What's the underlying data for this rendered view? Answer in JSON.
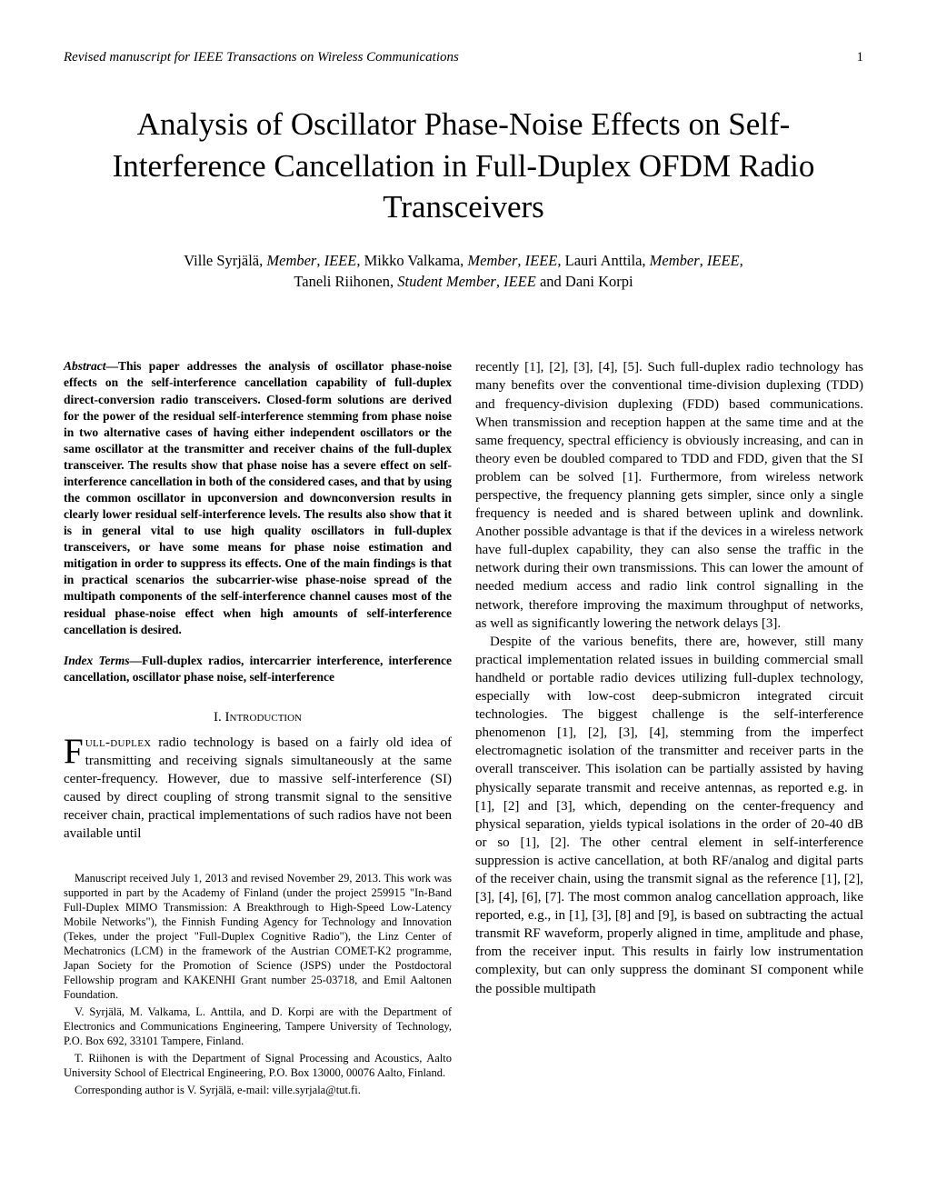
{
  "header": {
    "journal": "Revised manuscript for IEEE Transactions on Wireless Communications",
    "page": "1"
  },
  "title": "Analysis of Oscillator Phase-Noise Effects on Self-Interference Cancellation in Full-Duplex OFDM Radio Transceivers",
  "authors_line1_a": "Ville Syrjälä, ",
  "authors_role1": "Member",
  "authors_sep1": ", ",
  "authors_org1": "IEEE",
  "authors_line1_b": ", Mikko Valkama, ",
  "authors_role2": "Member",
  "authors_sep2": ", ",
  "authors_org2": "IEEE",
  "authors_line1_c": ", Lauri Anttila, ",
  "authors_role3": "Member",
  "authors_sep3": ", ",
  "authors_org3": "IEEE",
  "authors_line1_d": ",",
  "authors_line2_a": "Taneli Riihonen, ",
  "authors_role4": "Student Member",
  "authors_sep4": ", ",
  "authors_org4": "IEEE",
  "authors_line2_b": " and Dani Korpi",
  "abstract_label": "Abstract",
  "abstract_dash": "—",
  "abstract_body": "This paper addresses the analysis of oscillator phase-noise effects on the self-interference cancellation capability of full-duplex direct-conversion radio transceivers. Closed-form solutions are derived for the power of the residual self-interference stemming from phase noise in two alternative cases of having either independent oscillators or the same oscillator at the transmitter and receiver chains of the full-duplex transceiver. The results show that phase noise has a severe effect on self-interference cancellation in both of the considered cases, and that by using the common oscillator in upconversion and downconversion results in clearly lower residual self-interference levels. The results also show that it is in general vital to use high quality oscillators in full-duplex transceivers, or have some means for phase noise estimation and mitigation in order to suppress its effects. One of the main findings is that in practical scenarios the subcarrier-wise phase-noise spread of the multipath components of the self-interference channel causes most of the residual phase-noise effect when high amounts of self-interference cancellation is desired.",
  "index_label": "Index Terms",
  "index_dash": "—",
  "index_body": "Full-duplex radios, intercarrier interference, interference cancellation, oscillator phase noise, self-interference",
  "section1": "I.   Introduction",
  "intro_dc": "F",
  "intro_dc_rest": "ull-duplex",
  "intro_body": " radio technology is based on a fairly old idea of transmitting and receiving signals simultaneously at the same center-frequency. However, due to massive self-interference (SI) caused by direct coupling of strong transmit signal to the sensitive receiver chain, practical implementations of such radios have not been available until",
  "fn1": "Manuscript received July 1, 2013 and revised November 29, 2013. This work was supported in part by the Academy of Finland (under the project 259915 \"In-Band Full-Duplex MIMO Transmission: A Breakthrough to High-Speed Low-Latency Mobile Networks\"), the Finnish Funding Agency for Technology and Innovation (Tekes, under the project \"Full-Duplex Cognitive Radio\"), the Linz Center of Mechatronics (LCM) in the framework of the Austrian COMET-K2 programme, Japan Society for the Promotion of Science (JSPS) under the Postdoctoral Fellowship program and KAKENHI Grant number 25-03718, and Emil Aaltonen Foundation.",
  "fn2": "V. Syrjälä, M. Valkama, L. Anttila, and D. Korpi are with the Department of Electronics and Communications Engineering, Tampere University of Technology, P.O. Box 692, 33101 Tampere, Finland.",
  "fn3": "T. Riihonen is with the Department of Signal Processing and Acoustics, Aalto University School of Electrical Engineering, P.O. Box 13000, 00076 Aalto, Finland.",
  "fn4": "Corresponding author is V. Syrjälä, e-mail: ville.syrjala@tut.fi.",
  "right_p1": "recently [1], [2], [3], [4], [5]. Such full-duplex radio technology has many benefits over the conventional time-division duplexing (TDD) and frequency-division duplexing (FDD) based communications. When transmission and reception happen at the same time and at the same frequency, spectral efficiency is obviously increasing, and can in theory even be doubled compared to TDD and FDD, given that the SI problem can be solved [1]. Furthermore, from wireless network perspective, the frequency planning gets simpler, since only a single frequency is needed and is shared between uplink and downlink. Another possible advantage is that if the devices in a wireless network have full-duplex capability, they can also sense the traffic in the network during their own transmissions. This can lower the amount of needed medium access and radio link control signalling in the network, therefore improving the maximum throughput of networks, as well as significantly lowering the network delays [3].",
  "right_p2": "Despite of the various benefits, there are, however, still many practical implementation related issues in building commercial small handheld or portable radio devices utilizing full-duplex technology, especially with low-cost deep-submicron integrated circuit technologies. The biggest challenge is the self-interference phenomenon [1], [2], [3], [4], stemming from the imperfect electromagnetic isolation of the transmitter and receiver parts in the overall transceiver. This isolation can be partially assisted by having physically separate transmit and receive antennas, as reported e.g. in [1], [2] and [3], which, depending on the center-frequency and physical separation, yields typical isolations in the order of 20-40 dB or so [1], [2]. The other central element in self-interference suppression is active cancellation, at both RF/analog and digital parts of the receiver chain, using the transmit signal as the reference [1], [2], [3], [4], [6], [7]. The most common analog cancellation approach, like reported, e.g., in [1], [3], [8] and [9], is based on subtracting the actual transmit RF waveform, properly aligned in time, amplitude and phase, from the receiver input. This results in fairly low instrumentation complexity, but can only suppress the dominant SI component while the possible multipath"
}
